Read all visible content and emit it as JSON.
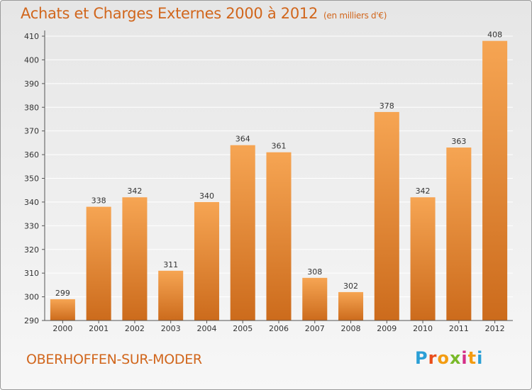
{
  "header": {
    "title": "Achats et Charges Externes 2000 à 2012",
    "unit": "(en milliers d'€)"
  },
  "footer": {
    "place": "OBERHOFFEN-SUR-MODER",
    "logo": {
      "text": "Proxiti",
      "letter_colors": [
        "#2a9fd6",
        "#e94e1b",
        "#f39c12",
        "#79b929",
        "#d42e87",
        "#f39c12",
        "#2a9fd6"
      ]
    }
  },
  "colors": {
    "bar_light": "#f6a553",
    "bar_dark": "#cc6b1c",
    "grid": "#ffffff",
    "axis": "#555555",
    "text": "#333333"
  },
  "chart_data": {
    "type": "bar",
    "categories": [
      "2000",
      "2001",
      "2002",
      "2003",
      "2004",
      "2005",
      "2006",
      "2007",
      "2008",
      "2009",
      "2010",
      "2011",
      "2012"
    ],
    "values": [
      299,
      338,
      342,
      311,
      340,
      364,
      361,
      308,
      302,
      378,
      342,
      363,
      408
    ],
    "ylim": [
      290,
      410
    ],
    "yticks": [
      290,
      300,
      310,
      320,
      330,
      340,
      350,
      360,
      370,
      380,
      390,
      400,
      410
    ],
    "grid": true,
    "data_labels": true
  }
}
